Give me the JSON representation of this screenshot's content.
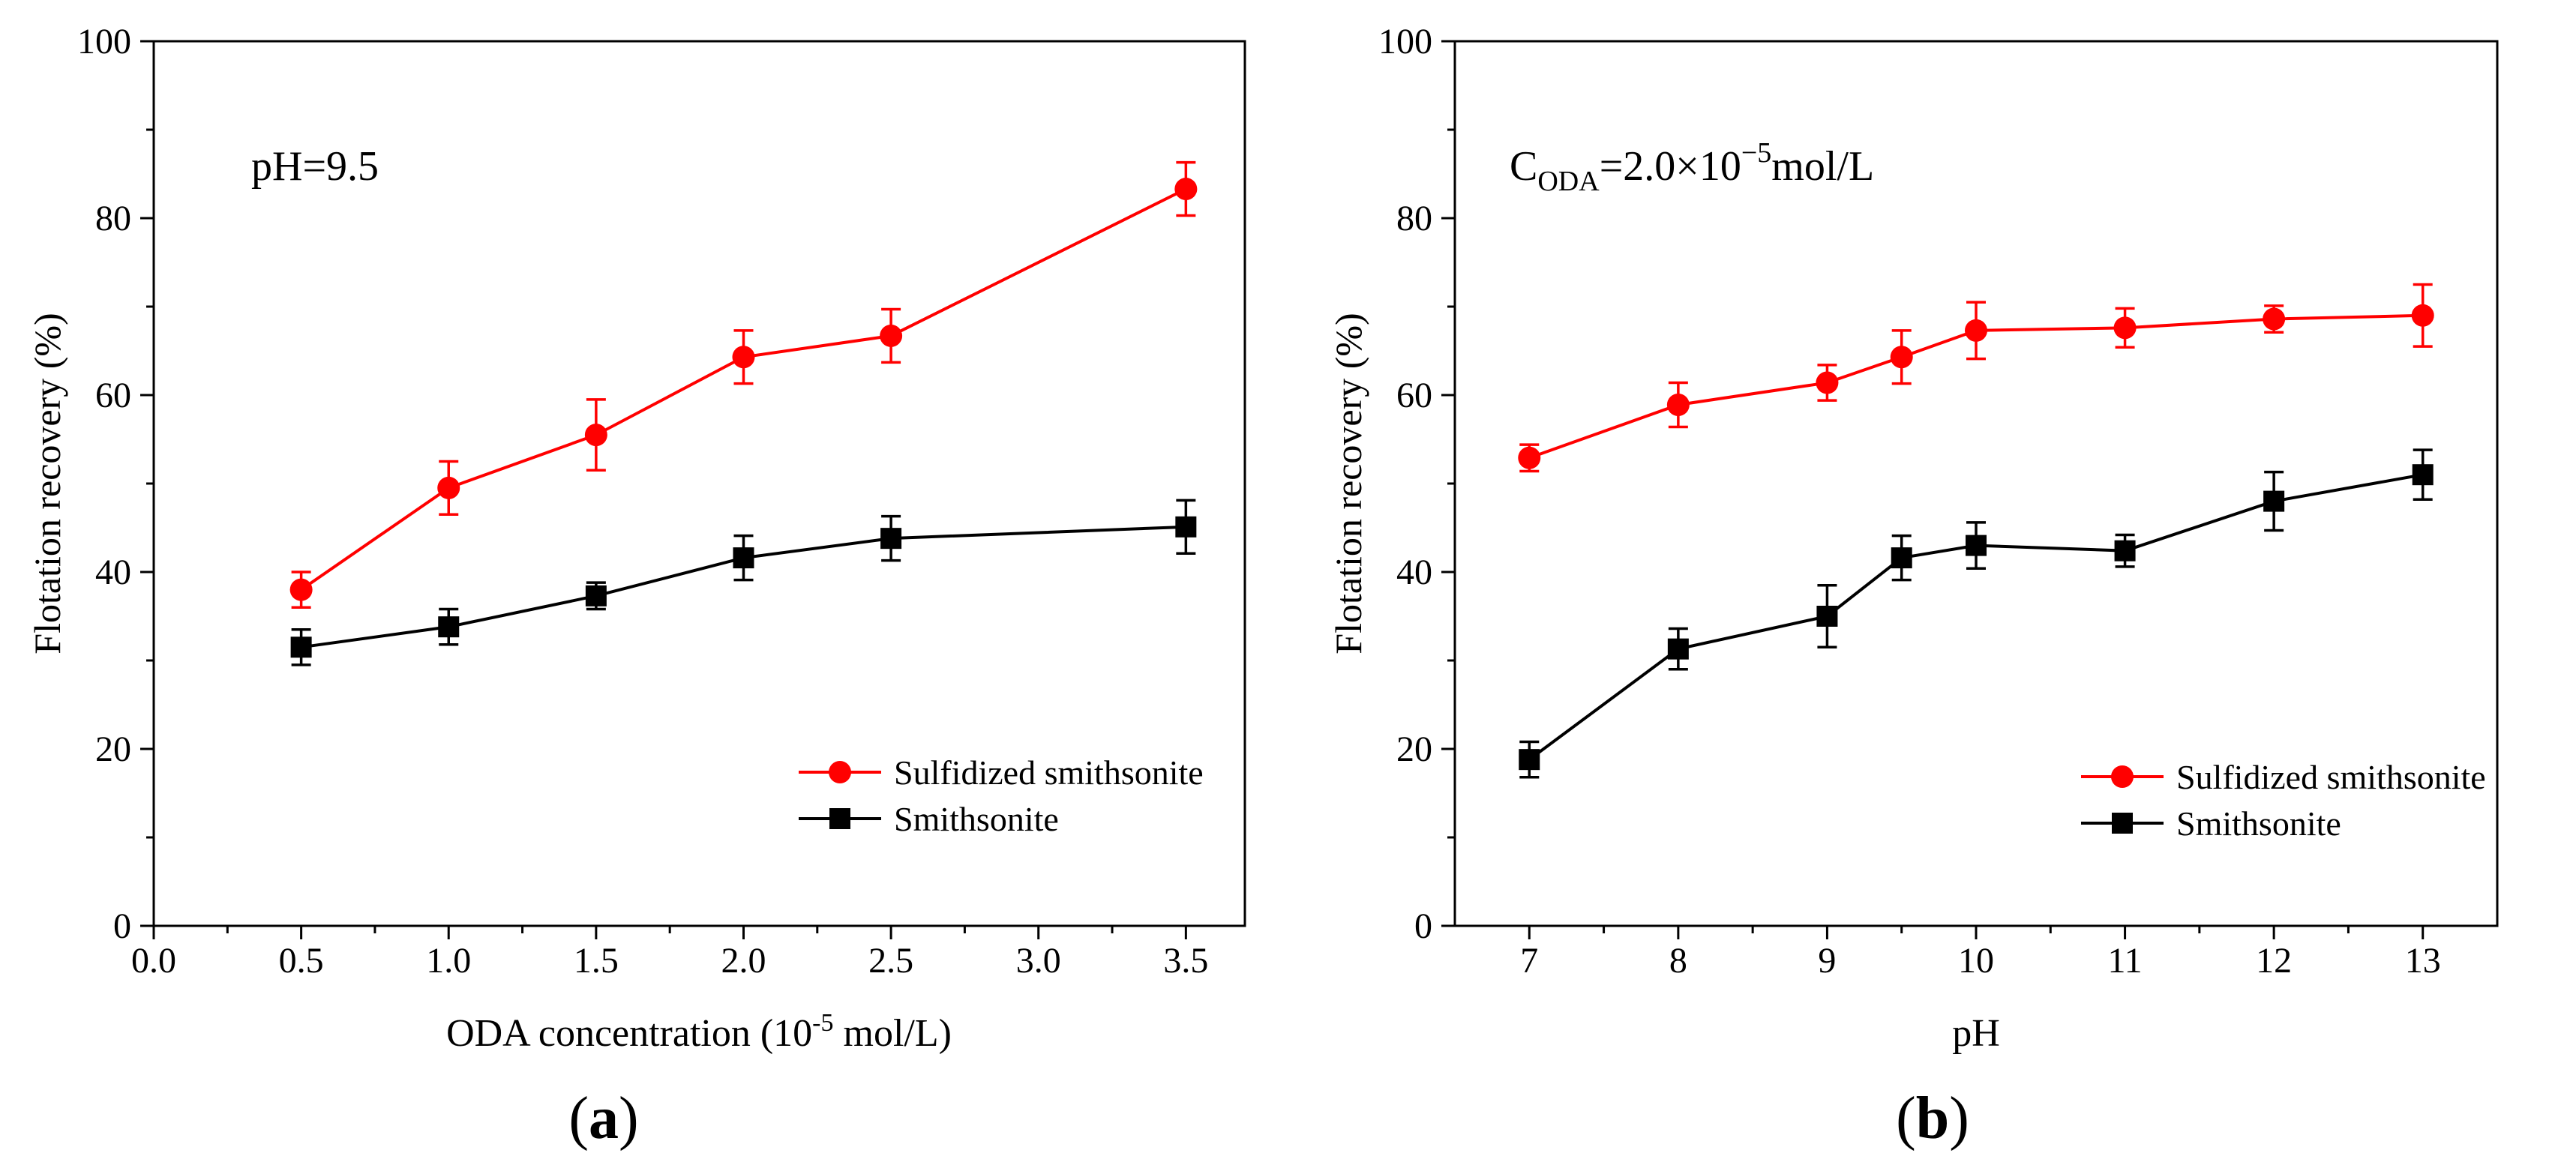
{
  "figure": {
    "background": "#ffffff"
  },
  "chart_data": [
    {
      "type": "line",
      "panel_label": "a",
      "title": "",
      "annotation": "pH=9.5",
      "xlabel": {
        "main": "ODA concentration (10",
        "sup": "-5",
        "suffix": " mol/L)"
      },
      "ylabel": "Flotation recovery (%)",
      "xlim": [
        0.0,
        3.7
      ],
      "ylim": [
        0,
        100
      ],
      "x_ticks": [
        "0.0",
        "0.5",
        "1.0",
        "1.5",
        "2.0",
        "2.5",
        "3.0",
        "3.5"
      ],
      "y_ticks": [
        "0",
        "20",
        "40",
        "60",
        "80",
        "100"
      ],
      "grid": false,
      "legend_position": "bottom-right",
      "series": [
        {
          "name": "Sulfidized smithsonite",
          "color": "#ff0000",
          "marker": "circle",
          "x": [
            0.5,
            1.0,
            1.5,
            2.0,
            2.5,
            3.5
          ],
          "y": [
            38.0,
            49.5,
            55.5,
            64.3,
            66.7,
            83.3
          ],
          "err": [
            2.0,
            3.0,
            4.0,
            3.0,
            3.0,
            3.0
          ]
        },
        {
          "name": "Smithsonite",
          "color": "#000000",
          "marker": "square",
          "x": [
            0.5,
            1.0,
            1.5,
            2.0,
            2.5,
            3.5
          ],
          "y": [
            31.5,
            33.8,
            37.3,
            41.6,
            43.8,
            45.1
          ],
          "err": [
            2.0,
            2.0,
            1.5,
            2.5,
            2.5,
            3.0
          ]
        }
      ]
    },
    {
      "type": "line",
      "panel_label": "b",
      "title": "",
      "annotation": {
        "main": "C",
        "sub": "ODA",
        "mid": "=2.0×10",
        "sup": "−5",
        "suffix": "mol/L"
      },
      "xlabel": "pH",
      "ylabel": "Flotation recovery (%)",
      "xlim": [
        6.5,
        13.5
      ],
      "ylim": [
        0,
        100
      ],
      "x_ticks": [
        "7",
        "8",
        "9",
        "10",
        "11",
        "12",
        "13"
      ],
      "y_ticks": [
        "0",
        "20",
        "40",
        "60",
        "80",
        "100"
      ],
      "grid": false,
      "legend_position": "bottom-right",
      "series": [
        {
          "name": "Sulfidized smithsonite",
          "color": "#ff0000",
          "marker": "circle",
          "x": [
            7,
            8,
            9,
            9.5,
            10,
            11,
            12,
            13
          ],
          "y": [
            52.9,
            58.9,
            61.4,
            64.3,
            67.3,
            67.6,
            68.6,
            69.0
          ],
          "err": [
            1.5,
            2.5,
            2.0,
            3.0,
            3.2,
            2.2,
            1.5,
            3.5
          ]
        },
        {
          "name": "Smithsonite",
          "color": "#000000",
          "marker": "square",
          "x": [
            7,
            8,
            9,
            9.5,
            10,
            11,
            12,
            13
          ],
          "y": [
            18.8,
            31.3,
            35.0,
            41.6,
            43.0,
            42.4,
            48.0,
            51.0
          ],
          "err": [
            2.0,
            2.3,
            3.5,
            2.5,
            2.6,
            1.8,
            3.3,
            2.8
          ]
        }
      ]
    }
  ]
}
